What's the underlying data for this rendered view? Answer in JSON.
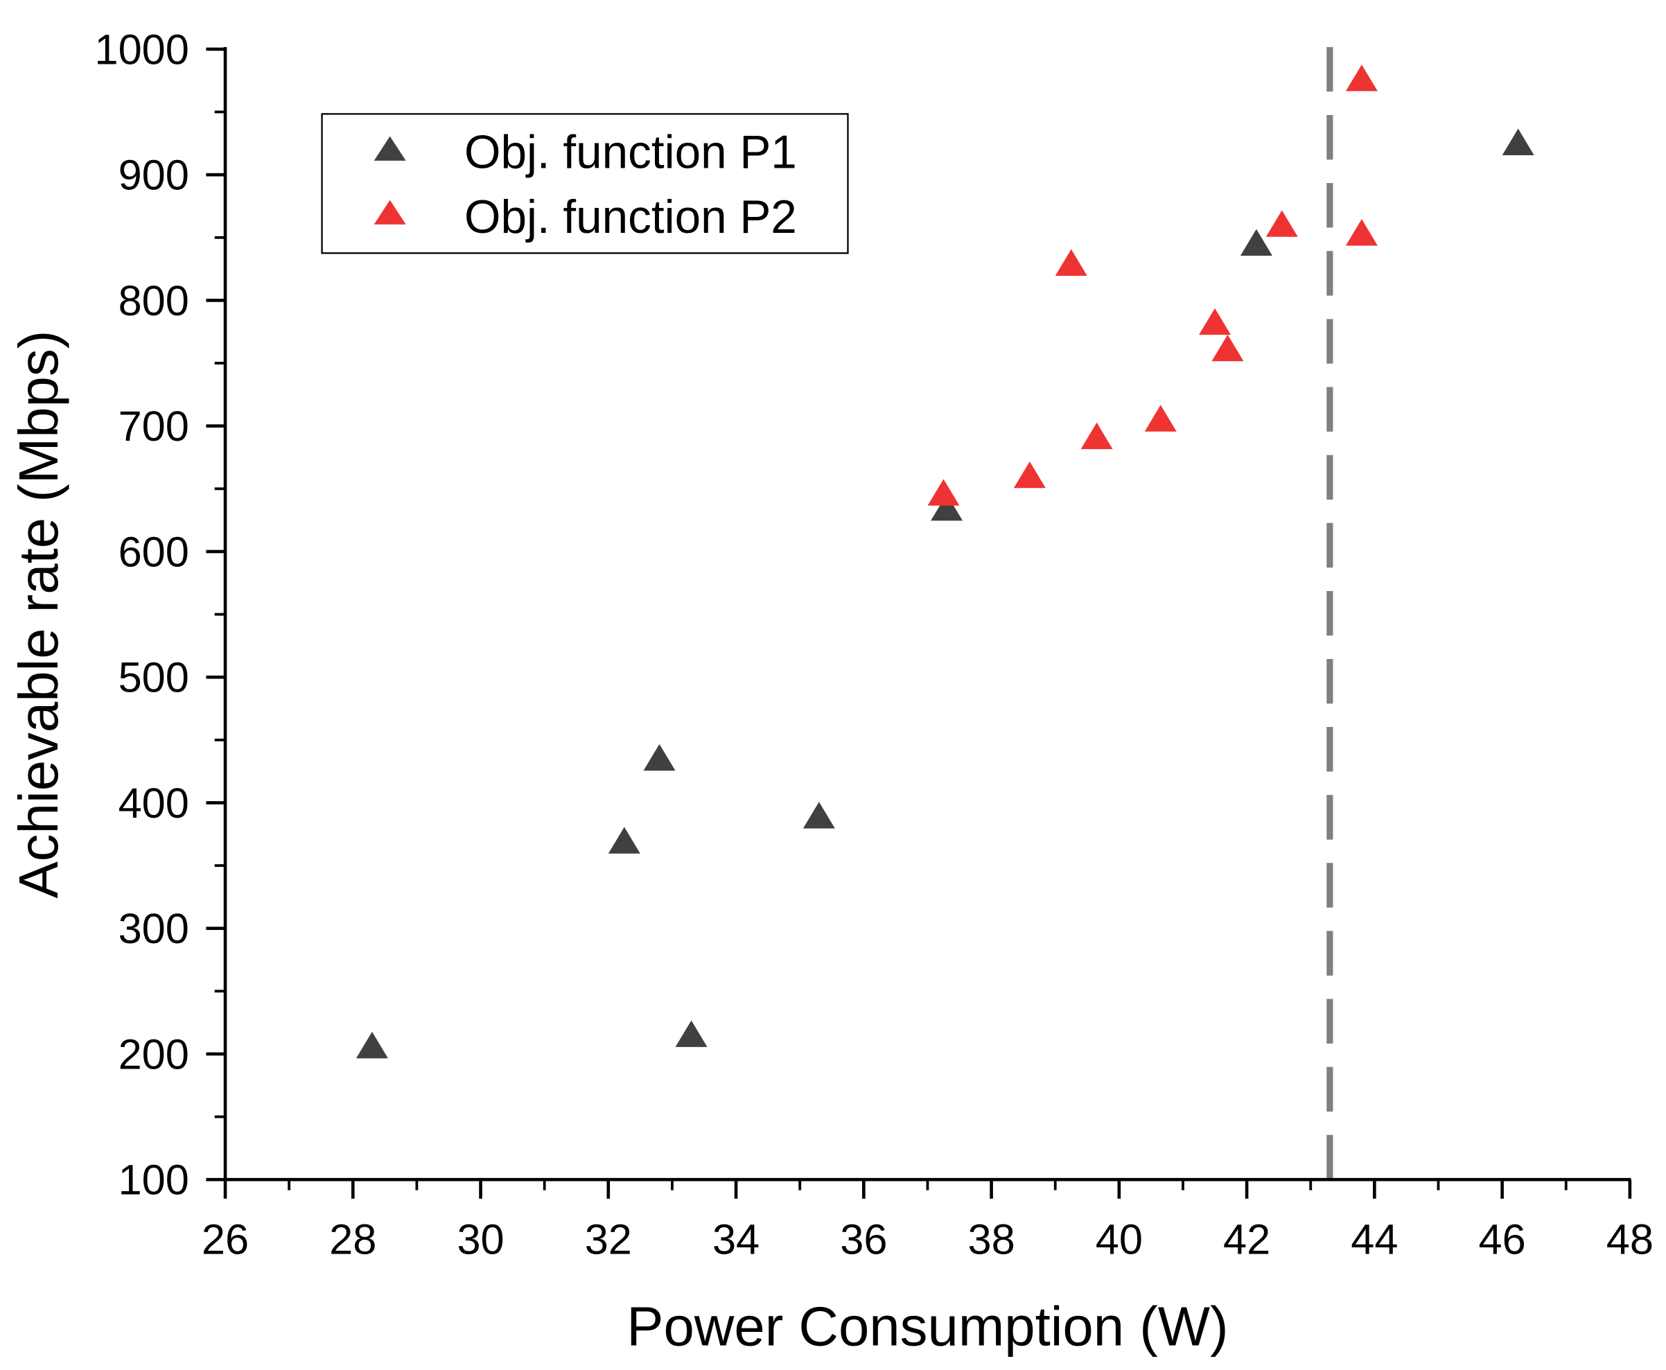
{
  "chart_data": {
    "type": "scatter",
    "title": "",
    "xlabel": "Power Consumption (W)",
    "ylabel": "Achievable rate (Mbps)",
    "xlim": [
      26,
      48
    ],
    "ylim": [
      100,
      1000
    ],
    "xticks": [
      26,
      28,
      30,
      32,
      34,
      36,
      38,
      40,
      42,
      44,
      46,
      48
    ],
    "yticks": [
      100,
      200,
      300,
      400,
      500,
      600,
      700,
      800,
      900,
      1000
    ],
    "grid": false,
    "legend_position": "top-left",
    "reference_line": {
      "orientation": "vertical",
      "x": 43.3,
      "style": "dashed",
      "color": "#808080"
    },
    "series": [
      {
        "name": "Obj. function P1",
        "marker": "triangle",
        "color": "#404040",
        "points": [
          [
            28.3,
            205
          ],
          [
            32.25,
            368
          ],
          [
            32.8,
            434
          ],
          [
            33.3,
            214
          ],
          [
            35.3,
            388
          ],
          [
            37.3,
            633
          ],
          [
            42.15,
            844
          ],
          [
            46.25,
            924
          ]
        ]
      },
      {
        "name": "Obj. function P2",
        "marker": "triangle",
        "color": "#ee3333",
        "points": [
          [
            37.25,
            645
          ],
          [
            38.6,
            659
          ],
          [
            39.25,
            828
          ],
          [
            39.65,
            690
          ],
          [
            40.65,
            704
          ],
          [
            41.5,
            781
          ],
          [
            41.7,
            760
          ],
          [
            42.55,
            859
          ],
          [
            43.8,
            975
          ],
          [
            43.8,
            852
          ]
        ]
      }
    ]
  }
}
